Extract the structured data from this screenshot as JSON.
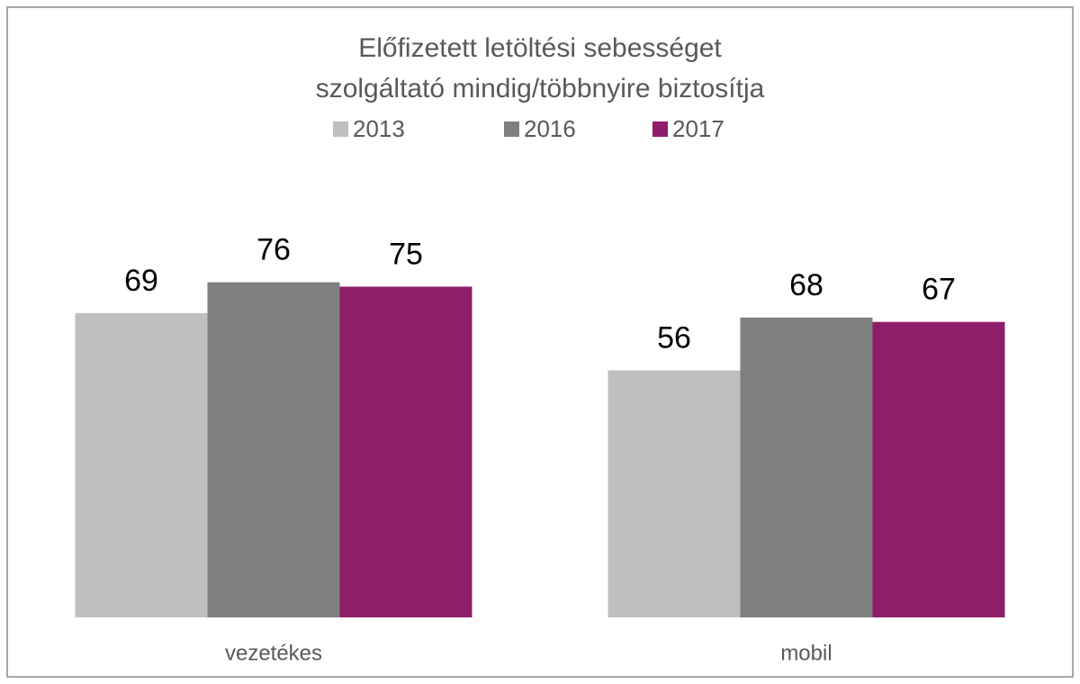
{
  "chart_data": {
    "type": "bar",
    "title": [
      "Előfizetett letöltési sebességet",
      "szolgáltató mindig/többnyire biztosítja"
    ],
    "categories": [
      "vezetékes",
      "mobil"
    ],
    "series": [
      {
        "name": "2013",
        "color": "#bfbfbf",
        "values": [
          69,
          56
        ]
      },
      {
        "name": "2016",
        "color": "#7f7f7f",
        "values": [
          76,
          68
        ]
      },
      {
        "name": "2017",
        "color": "#8e1d6a",
        "values": [
          75,
          67
        ]
      }
    ],
    "ylim": [
      0,
      100
    ],
    "legend": "top"
  }
}
